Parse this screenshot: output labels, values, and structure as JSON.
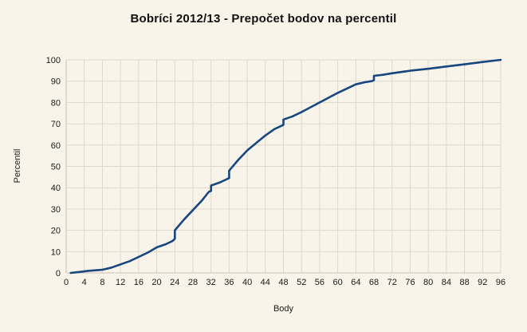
{
  "chart_data": {
    "type": "line",
    "title": "Bobríci 2012/13 - Prepočet bodov na percentil",
    "xlabel": "Body",
    "ylabel": "Percentil",
    "xlim": [
      0,
      96
    ],
    "ylim": [
      0,
      100
    ],
    "x_tick_step": 4,
    "y_tick_step": 10,
    "x_ticks": [
      0,
      4,
      8,
      12,
      16,
      20,
      24,
      28,
      32,
      36,
      40,
      44,
      48,
      52,
      56,
      60,
      64,
      68,
      72,
      76,
      80,
      84,
      88,
      92,
      96
    ],
    "y_ticks": [
      0,
      10,
      20,
      30,
      40,
      50,
      60,
      70,
      80,
      90,
      100
    ],
    "grid": true,
    "legend_position": "none",
    "series": [
      {
        "name": "Percentil",
        "color": "#17477e",
        "points": [
          [
            1,
            0
          ],
          [
            3,
            0.5
          ],
          [
            5,
            1
          ],
          [
            8,
            1.5
          ],
          [
            10,
            2.5
          ],
          [
            12,
            4
          ],
          [
            14,
            5.5
          ],
          [
            16,
            7.5
          ],
          [
            18,
            9.5
          ],
          [
            20,
            12
          ],
          [
            22,
            13.5
          ],
          [
            23.5,
            15
          ],
          [
            24,
            16
          ],
          [
            24,
            20
          ],
          [
            26,
            25
          ],
          [
            28,
            29.5
          ],
          [
            30,
            34
          ],
          [
            31.5,
            38
          ],
          [
            32,
            38.5
          ],
          [
            32,
            41
          ],
          [
            34,
            42.5
          ],
          [
            35.5,
            44
          ],
          [
            36,
            44.5
          ],
          [
            36,
            48
          ],
          [
            38,
            53
          ],
          [
            40,
            57.5
          ],
          [
            42,
            61
          ],
          [
            44,
            64.5
          ],
          [
            46,
            67.5
          ],
          [
            47.5,
            69
          ],
          [
            48,
            69.5
          ],
          [
            48,
            72
          ],
          [
            50,
            73.5
          ],
          [
            52,
            75.5
          ],
          [
            56,
            80
          ],
          [
            60,
            84.5
          ],
          [
            64,
            88.5
          ],
          [
            66,
            89.5
          ],
          [
            67.5,
            90
          ],
          [
            68,
            90.5
          ],
          [
            68,
            92.5
          ],
          [
            70,
            93
          ],
          [
            72,
            93.7
          ],
          [
            76,
            94.9
          ],
          [
            80,
            95.8
          ],
          [
            84,
            96.9
          ],
          [
            88,
            97.9
          ],
          [
            92,
            99
          ],
          [
            96,
            100
          ]
        ]
      }
    ],
    "colors": {
      "background": "#f9f4ea",
      "gridline": "#ddd8cd",
      "axis": "#c7c1b5",
      "text": "#1a1a1a",
      "line": "#17477e"
    }
  }
}
